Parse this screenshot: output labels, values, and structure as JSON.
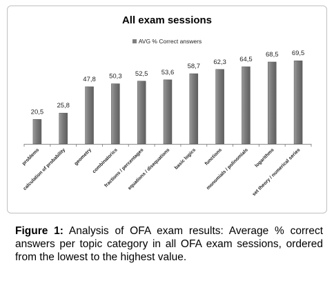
{
  "chart_data": {
    "type": "bar",
    "title": "All exam sessions",
    "legend": {
      "position": "top",
      "entries": [
        "AVG % Correct answers"
      ]
    },
    "series": [
      {
        "name": "AVG % Correct answers",
        "color": "#7f7f7f",
        "values": [
          20.5,
          25.8,
          47.8,
          50.3,
          52.5,
          53.6,
          58.7,
          62.3,
          64.5,
          68.5,
          69.5
        ]
      }
    ],
    "categories": [
      "problems",
      "calculation of probability",
      "geometry",
      "combinatorics",
      "fractions / percentages",
      "equations / disequations",
      "basic logics",
      "functions",
      "monomials / polinomials",
      "logarithms",
      "set theory / numerical series"
    ],
    "data_labels": [
      "20,5",
      "25,8",
      "47,8",
      "50,3",
      "52,5",
      "53,6",
      "58,7",
      "62,3",
      "64,5",
      "68,5",
      "69,5"
    ],
    "ylim": [
      0,
      80
    ],
    "grid": false,
    "xlabel": "",
    "ylabel": ""
  },
  "caption": {
    "lead": "Figure 1:",
    "text": " Analysis of OFA exam results: Average % correct answers per topic category in all OFA exam sessions, ordered from the lowest to the highest value."
  }
}
